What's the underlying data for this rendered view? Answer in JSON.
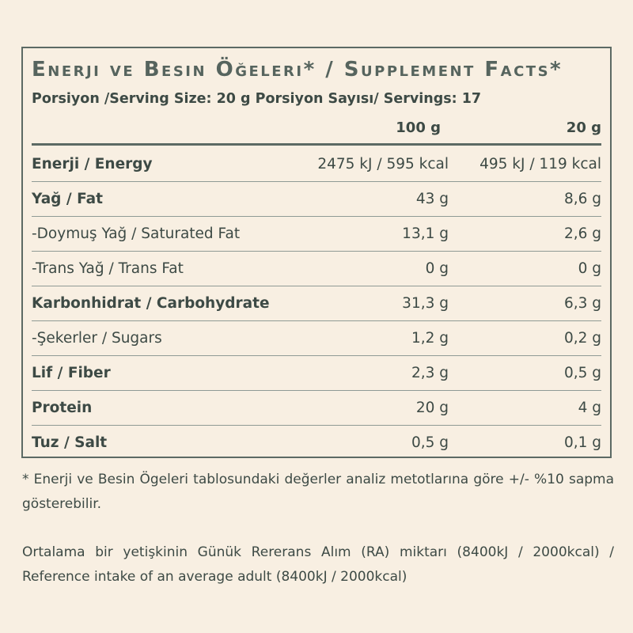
{
  "label": {
    "title": "Enerji ve Besin Öğeleri* / Supplement Facts*",
    "serving_line": "Porsiyon /Serving Size: 20 g Porsiyon Sayısı/ Servings: 17",
    "columns": [
      "100 g",
      "20 g"
    ],
    "rows": [
      {
        "name": "Enerji / Energy",
        "bold": true,
        "per100": "2475 kJ / 595 kcal",
        "per20": "495 kJ / 119 kcal"
      },
      {
        "name": "Yağ / Fat",
        "bold": true,
        "per100": "43 g",
        "per20": "8,6 g"
      },
      {
        "name": "-Doymuş Yağ / Saturated Fat",
        "bold": false,
        "per100": "13,1 g",
        "per20": "2,6 g"
      },
      {
        "name": "-Trans Yağ / Trans Fat",
        "bold": false,
        "per100": "0 g",
        "per20": "0 g"
      },
      {
        "name": "Karbonhidrat / Carbohydrate",
        "bold": true,
        "per100": "31,3 g",
        "per20": "6,3 g"
      },
      {
        "name": "-Şekerler / Sugars",
        "bold": false,
        "per100": "1,2 g",
        "per20": "0,2 g"
      },
      {
        "name": "Lif / Fiber",
        "bold": true,
        "per100": "2,3 g",
        "per20": "0,5 g"
      },
      {
        "name": "Protein",
        "bold": true,
        "per100": "20 g",
        "per20": "4 g"
      },
      {
        "name": "Tuz / Salt",
        "bold": true,
        "per100": "0,5 g",
        "per20": "0,1 g"
      }
    ]
  },
  "notes": {
    "analysis": "* Enerji ve Besin Ögeleri tablosundaki değerler analiz metotlarına göre +/- %10 sapma gösterebilir.",
    "reference": "Ortalama bir yetişkinin Günük Rererans Alım (RA) miktarı (8400kJ / 2000kcal) / Reference intake of an average adult (8400kJ / 2000kcal)"
  },
  "colors": {
    "background": "#f8efe2",
    "text": "#3d4a45",
    "border": "#5c6a64"
  }
}
